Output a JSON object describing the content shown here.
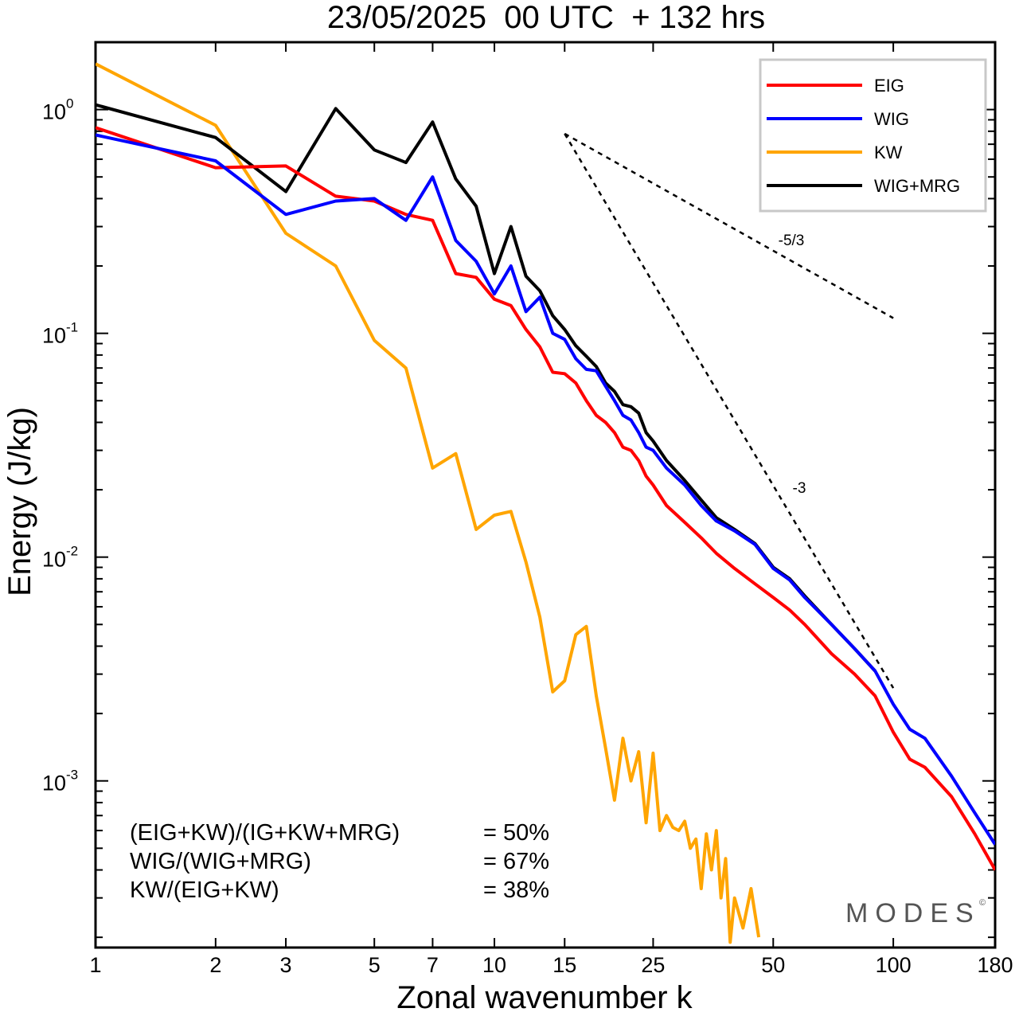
{
  "chart_data": {
    "type": "line",
    "title": "23/05/2025  00 UTC  + 132 hrs",
    "xlabel": "Zonal wavenumber k",
    "ylabel": "Energy (J/kg)",
    "xscale": "log",
    "yscale": "log",
    "xlim": [
      1,
      180
    ],
    "ylim": [
      0.00018,
      2.0
    ],
    "x_ticks": [
      1,
      2,
      3,
      5,
      7,
      10,
      15,
      25,
      50,
      100,
      180
    ],
    "x_tick_labels": [
      "1",
      "2",
      "3",
      "5",
      "7",
      "10",
      "15",
      "25",
      "50",
      "100",
      "180"
    ],
    "y_ticks": [
      {
        "value": 1,
        "base": "10",
        "exp": "0"
      },
      {
        "value": 0.1,
        "base": "10",
        "exp": "-1"
      },
      {
        "value": 0.01,
        "base": "10",
        "exp": "-2"
      },
      {
        "value": 0.001,
        "base": "10",
        "exp": "-3"
      }
    ],
    "legend_position": "top-right",
    "grid": false,
    "series": [
      {
        "name": "EIG",
        "color": "#ff0000",
        "x": [
          1,
          2,
          3,
          4,
          5,
          6,
          7,
          8,
          9,
          10,
          11,
          12,
          13,
          14,
          15,
          16,
          17,
          18,
          19,
          20,
          21,
          22,
          23,
          24,
          25,
          27,
          30,
          33,
          36,
          40,
          45,
          50,
          55,
          60,
          70,
          80,
          90,
          100,
          110,
          120,
          140,
          160,
          180
        ],
        "y": [
          0.83,
          0.55,
          0.56,
          0.41,
          0.39,
          0.34,
          0.32,
          0.185,
          0.178,
          0.142,
          0.133,
          0.104,
          0.087,
          0.067,
          0.066,
          0.06,
          0.05,
          0.043,
          0.04,
          0.036,
          0.031,
          0.03,
          0.027,
          0.023,
          0.021,
          0.017,
          0.0143,
          0.0122,
          0.0104,
          0.0089,
          0.0076,
          0.0066,
          0.0058,
          0.005,
          0.0037,
          0.003,
          0.0024,
          0.00165,
          0.00125,
          0.00115,
          0.00085,
          0.00058,
          0.0004
        ]
      },
      {
        "name": "WIG",
        "color": "#0000ff",
        "x": [
          1,
          2,
          3,
          4,
          5,
          6,
          7,
          8,
          9,
          10,
          11,
          12,
          13,
          14,
          15,
          16,
          17,
          18,
          19,
          20,
          21,
          22,
          23,
          24,
          25,
          27,
          30,
          33,
          36,
          40,
          45,
          50,
          55,
          60,
          70,
          80,
          90,
          100,
          110,
          120,
          140,
          160,
          180
        ],
        "y": [
          0.77,
          0.59,
          0.34,
          0.39,
          0.4,
          0.32,
          0.5,
          0.26,
          0.21,
          0.15,
          0.2,
          0.125,
          0.145,
          0.1,
          0.094,
          0.077,
          0.069,
          0.068,
          0.058,
          0.05,
          0.043,
          0.041,
          0.036,
          0.031,
          0.03,
          0.025,
          0.021,
          0.017,
          0.0145,
          0.0131,
          0.0114,
          0.0089,
          0.0079,
          0.0066,
          0.005,
          0.0039,
          0.0031,
          0.0022,
          0.0017,
          0.00155,
          0.00105,
          0.00072,
          0.00052
        ]
      },
      {
        "name": "KW",
        "color": "#ffa500",
        "x": [
          1,
          2,
          3,
          4,
          5,
          6,
          7,
          8,
          9,
          10,
          11,
          12,
          13,
          14,
          15,
          16,
          17,
          18,
          19,
          20,
          21,
          22,
          23,
          24,
          25,
          26,
          27,
          28,
          29,
          30,
          31,
          32,
          33,
          34,
          35,
          36,
          37,
          38,
          39,
          40,
          42,
          44,
          46
        ],
        "y": [
          1.6,
          0.85,
          0.28,
          0.2,
          0.093,
          0.07,
          0.025,
          0.029,
          0.0133,
          0.0154,
          0.016,
          0.0095,
          0.0054,
          0.0025,
          0.0028,
          0.0045,
          0.0049,
          0.0024,
          0.0014,
          0.00082,
          0.00155,
          0.001,
          0.00135,
          0.00065,
          0.00133,
          0.0006,
          0.0007,
          0.00062,
          0.0006,
          0.00066,
          0.0005,
          0.00055,
          0.00033,
          0.00058,
          0.0004,
          0.0006,
          0.0003,
          0.00045,
          0.00019,
          0.0003,
          0.00022,
          0.00033,
          0.0002
        ]
      },
      {
        "name": "WIG+MRG",
        "color": "#000000",
        "x": [
          1,
          2,
          3,
          4,
          5,
          6,
          7,
          8,
          9,
          10,
          11,
          12,
          13,
          14,
          15,
          16,
          17,
          18,
          19,
          20,
          21,
          22,
          23,
          24,
          25,
          27,
          30,
          33,
          36,
          40,
          45,
          50,
          55,
          60,
          70,
          80,
          90
        ],
        "y": [
          1.05,
          0.75,
          0.43,
          1.01,
          0.66,
          0.58,
          0.88,
          0.49,
          0.37,
          0.185,
          0.3,
          0.18,
          0.155,
          0.12,
          0.104,
          0.088,
          0.079,
          0.071,
          0.06,
          0.055,
          0.048,
          0.047,
          0.044,
          0.036,
          0.033,
          0.027,
          0.022,
          0.018,
          0.015,
          0.0133,
          0.0115,
          0.009,
          0.008,
          0.0067,
          0.005,
          0.0039,
          0.0031
        ]
      }
    ],
    "reference_lines": [
      {
        "label": "-5/3",
        "x": [
          15,
          100
        ],
        "y": [
          0.78,
          0.117
        ]
      },
      {
        "label": "-3",
        "x": [
          15,
          100
        ],
        "y": [
          0.78,
          0.0026
        ]
      }
    ],
    "annotations": [
      {
        "expr": "(EIG+KW)/(IG+KW+MRG)",
        "value": "= 50%"
      },
      {
        "expr": "WIG/(WIG+MRG)",
        "value": "= 67%"
      },
      {
        "expr": "KW/(EIG+KW)",
        "value": "= 38%"
      }
    ],
    "logo": "MODES",
    "logo_mark": "©"
  }
}
